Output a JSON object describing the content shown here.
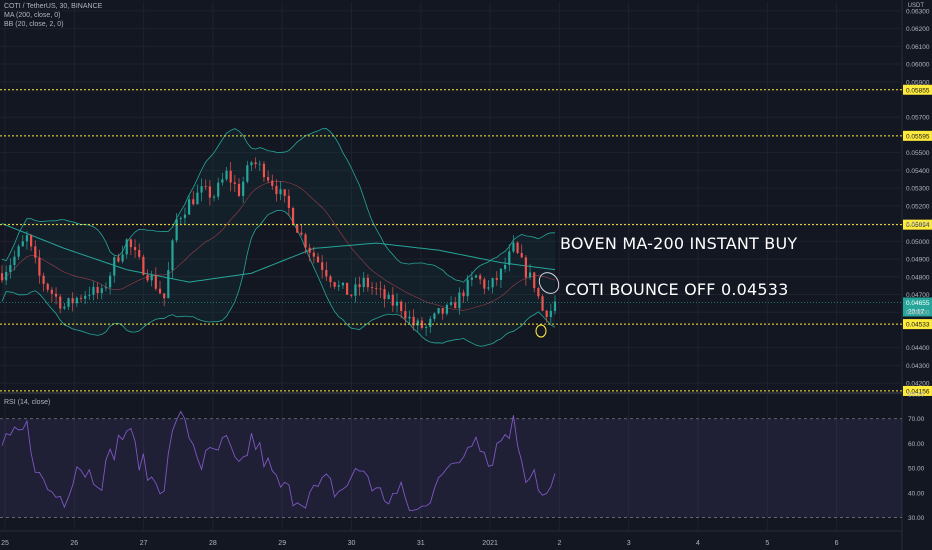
{
  "header": {
    "symbol_line": "COTI / TetherUS, 30, BINANCE",
    "indicator_ma": "MA (200, close, 0)",
    "indicator_bb": "BB (20, close, 2, 0)",
    "currency": "USDT"
  },
  "rsi_legend": "RSI (14, close)",
  "annotations": {
    "boven": "BOVEN MA-200 INSTANT BUY",
    "coti": "COTI BOUNCE OFF 0.04533"
  },
  "colors": {
    "background": "#131722",
    "up": "#26a69a",
    "down": "#ef5350",
    "ma": "#26a69a",
    "bb": "#26a69a",
    "level": "#ffeb3b",
    "rsi": "#7e57c2",
    "price_tag": "#26a69a"
  },
  "chart_data": [
    {
      "type": "candlestick",
      "x_ticks": [
        "25",
        "26",
        "27",
        "28",
        "29",
        "30",
        "31",
        "2021",
        "2",
        "3",
        "4",
        "5",
        "6"
      ],
      "y_ticks": [
        "0.06300",
        "0.06200",
        "0.06100",
        "0.06000",
        "0.05900",
        "0.05700",
        "0.05500",
        "0.05400",
        "0.05300",
        "0.05200",
        "0.05100",
        "0.05000",
        "0.04900",
        "0.04800",
        "0.04700",
        "0.04600",
        "0.04400",
        "0.04300",
        "0.04200"
      ],
      "ylim": [
        0.0415,
        0.0635
      ],
      "levels": [
        "0.05855",
        "0.05595",
        "0.05094",
        "0.04533",
        "0.04156"
      ],
      "last_price": "0.04655",
      "countdown": "20:17",
      "close_anchors": [
        [
          0,
          0.0482
        ],
        [
          3,
          0.0491
        ],
        [
          6,
          0.0502
        ],
        [
          9,
          0.048
        ],
        [
          12,
          0.0471
        ],
        [
          15,
          0.0463
        ],
        [
          18,
          0.0468
        ],
        [
          21,
          0.0472
        ],
        [
          24,
          0.047
        ],
        [
          27,
          0.0488
        ],
        [
          30,
          0.05
        ],
        [
          33,
          0.0488
        ],
        [
          36,
          0.0479
        ],
        [
          39,
          0.0468
        ],
        [
          42,
          0.0512
        ],
        [
          45,
          0.0522
        ],
        [
          48,
          0.0528
        ],
        [
          51,
          0.0526
        ],
        [
          54,
          0.0538
        ],
        [
          57,
          0.0528
        ],
        [
          60,
          0.0545
        ],
        [
          63,
          0.054
        ],
        [
          66,
          0.053
        ],
        [
          69,
          0.0518
        ],
        [
          72,
          0.0503
        ],
        [
          75,
          0.0492
        ],
        [
          78,
          0.0483
        ],
        [
          81,
          0.0474
        ],
        [
          84,
          0.047
        ],
        [
          87,
          0.0477
        ],
        [
          90,
          0.0472
        ],
        [
          93,
          0.0466
        ],
        [
          96,
          0.0463
        ],
        [
          99,
          0.0453
        ],
        [
          102,
          0.0451
        ],
        [
          105,
          0.0459
        ],
        [
          108,
          0.0462
        ],
        [
          111,
          0.0472
        ],
        [
          114,
          0.048
        ],
        [
          117,
          0.0473
        ],
        [
          120,
          0.0482
        ],
        [
          123,
          0.0496
        ],
        [
          126,
          0.0483
        ],
        [
          128,
          0.0476
        ],
        [
          130,
          0.0461
        ],
        [
          132,
          0.0461
        ],
        [
          133,
          0.0466
        ]
      ],
      "ma200_anchors": [
        [
          0,
          0.051
        ],
        [
          15,
          0.0496
        ],
        [
          30,
          0.0484
        ],
        [
          45,
          0.0477
        ],
        [
          60,
          0.0482
        ],
        [
          75,
          0.0496
        ],
        [
          90,
          0.0499
        ],
        [
          105,
          0.0495
        ],
        [
          120,
          0.0488
        ],
        [
          133,
          0.0484
        ]
      ]
    },
    {
      "type": "line",
      "title": "RSI (14, close)",
      "y_ticks": [
        "80.00",
        "70.00",
        "60.00",
        "50.00",
        "40.00",
        "30.00"
      ],
      "ylim": [
        25,
        80
      ],
      "bands": [
        30,
        70
      ],
      "anchors": [
        [
          0,
          58
        ],
        [
          3,
          62
        ],
        [
          6,
          66
        ],
        [
          9,
          46
        ],
        [
          12,
          40
        ],
        [
          15,
          38
        ],
        [
          18,
          52
        ],
        [
          21,
          48
        ],
        [
          24,
          46
        ],
        [
          27,
          58
        ],
        [
          30,
          66
        ],
        [
          33,
          54
        ],
        [
          36,
          45
        ],
        [
          39,
          44
        ],
        [
          42,
          72
        ],
        [
          45,
          64
        ],
        [
          48,
          52
        ],
        [
          51,
          56
        ],
        [
          54,
          60
        ],
        [
          57,
          48
        ],
        [
          60,
          62
        ],
        [
          63,
          54
        ],
        [
          66,
          44
        ],
        [
          69,
          40
        ],
        [
          72,
          38
        ],
        [
          75,
          40
        ],
        [
          78,
          44
        ],
        [
          81,
          40
        ],
        [
          84,
          46
        ],
        [
          87,
          50
        ],
        [
          90,
          40
        ],
        [
          93,
          38
        ],
        [
          96,
          40
        ],
        [
          99,
          32
        ],
        [
          102,
          34
        ],
        [
          105,
          50
        ],
        [
          108,
          48
        ],
        [
          111,
          56
        ],
        [
          114,
          66
        ],
        [
          117,
          52
        ],
        [
          120,
          62
        ],
        [
          123,
          68
        ],
        [
          126,
          48
        ],
        [
          128,
          50
        ],
        [
          130,
          38
        ],
        [
          132,
          40
        ],
        [
          133,
          45
        ]
      ]
    }
  ]
}
